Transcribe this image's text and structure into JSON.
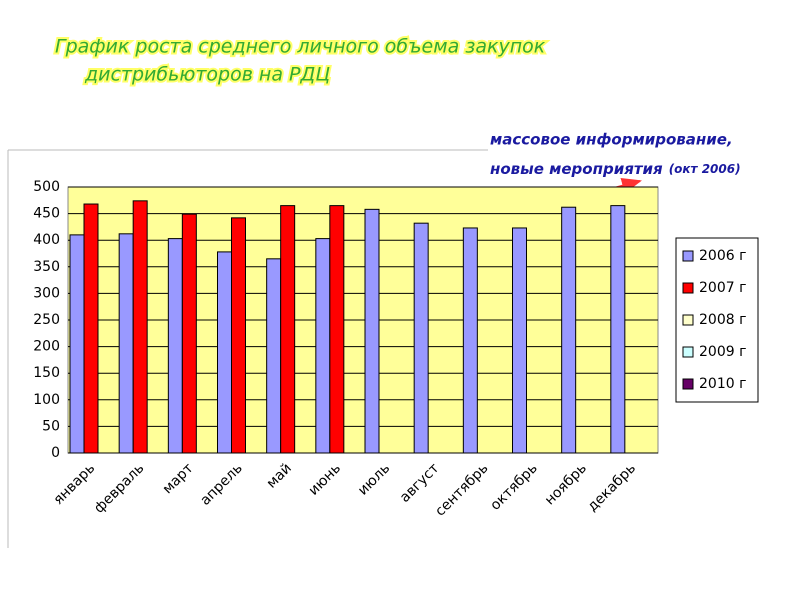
{
  "chart_data": {
    "type": "bar",
    "title_lines": [
      "График роста среднего личного объема закупок",
      "дистрибьюторов на РДЦ"
    ],
    "annotation_lines": [
      "массовое информирование,",
      "новые мероприятия"
    ],
    "annotation_note": "(окт 2006)",
    "categories": [
      "январь",
      "февраль",
      "март",
      "апрель",
      "май",
      "июнь",
      "июль",
      "август",
      "сентябрь",
      "октябрь",
      "ноябрь",
      "декабрь"
    ],
    "series": [
      {
        "name": "2006 г",
        "color": "#9999ff",
        "values": [
          410,
          412,
          403,
          378,
          365,
          403,
          458,
          432,
          423,
          423,
          462,
          465
        ]
      },
      {
        "name": "2007 г",
        "color": "#ff0000",
        "values": [
          468,
          474,
          449,
          442,
          465,
          465,
          null,
          null,
          null,
          null,
          null,
          null
        ]
      },
      {
        "name": "2008 г",
        "color": "#ffffcc",
        "values": [
          null,
          null,
          null,
          null,
          null,
          null,
          null,
          null,
          null,
          null,
          null,
          null
        ]
      },
      {
        "name": "2009 г",
        "color": "#ccffff",
        "values": [
          null,
          null,
          null,
          null,
          null,
          null,
          null,
          null,
          null,
          null,
          null,
          null
        ]
      },
      {
        "name": "2010 г",
        "color": "#660066",
        "values": [
          null,
          null,
          null,
          null,
          null,
          null,
          null,
          null,
          null,
          null,
          null,
          null
        ]
      }
    ],
    "ylim": [
      0,
      500
    ],
    "yticks": [
      0,
      50,
      100,
      150,
      200,
      250,
      300,
      350,
      400,
      450,
      500
    ],
    "grid": true,
    "legend": "right",
    "plot_background": "#ffff99"
  }
}
